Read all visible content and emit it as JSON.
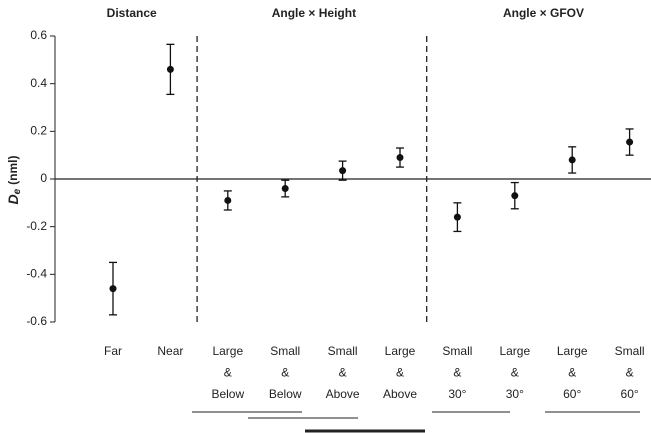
{
  "chart_data": {
    "type": "errorbar",
    "y_label": {
      "symbol": "D",
      "subscript": "e",
      "unit": "(nml)"
    },
    "ylim": [
      -0.6,
      0.6
    ],
    "yticks": [
      0.6,
      0.4,
      0.2,
      0,
      -0.2,
      -0.4,
      -0.6
    ],
    "color": "#111111",
    "groups": [
      {
        "title": "Distance",
        "categories": [
          [
            "Far"
          ],
          [
            "Near"
          ]
        ],
        "values": [
          -0.46,
          0.46
        ],
        "errors": [
          0.11,
          0.105
        ]
      },
      {
        "title": "Angle × Height",
        "categories": [
          [
            "Large",
            "&",
            "Below"
          ],
          [
            "Small",
            "&",
            "Below"
          ],
          [
            "Small",
            "&",
            "Above"
          ],
          [
            "Large",
            "&",
            "Above"
          ]
        ],
        "values": [
          -0.09,
          -0.04,
          0.035,
          0.09
        ],
        "errors": [
          0.04,
          0.035,
          0.04,
          0.04
        ]
      },
      {
        "title": "Angle × GFOV",
        "categories": [
          [
            "Small",
            "&",
            "30°"
          ],
          [
            "Large",
            "&",
            "30°"
          ],
          [
            "Large",
            "&",
            "60°"
          ],
          [
            "Small",
            "&",
            "60°"
          ]
        ],
        "values": [
          -0.16,
          -0.07,
          0.08,
          0.155
        ],
        "errors": [
          0.06,
          0.055,
          0.055,
          0.055
        ]
      }
    ]
  }
}
